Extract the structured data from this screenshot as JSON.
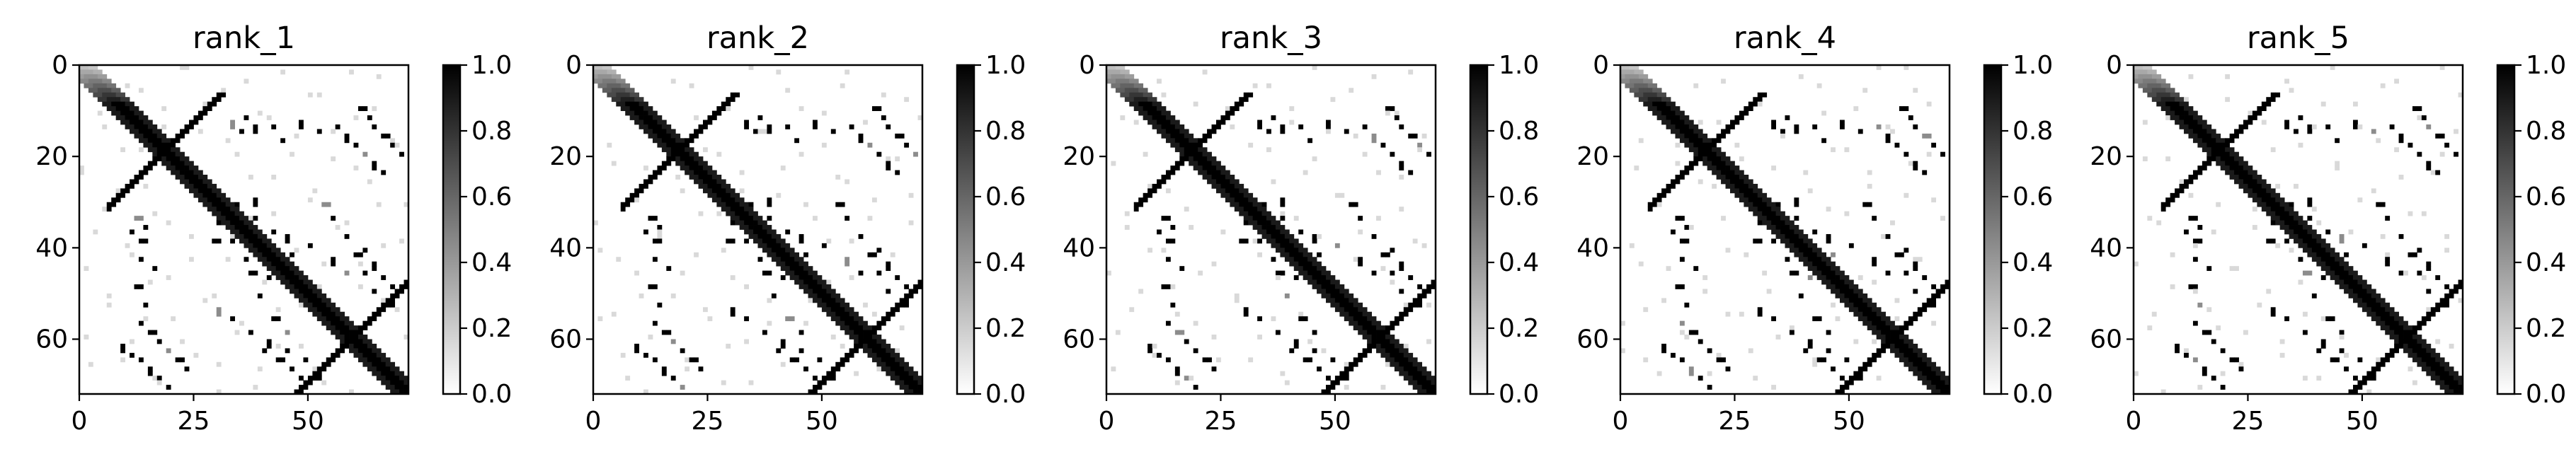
{
  "chart_data": [
    {
      "type": "heatmap",
      "title": "rank_1",
      "matrix_size": 72,
      "xticks": [
        0,
        25,
        50
      ],
      "yticks": [
        0,
        20,
        40,
        60
      ],
      "xlim": [
        0,
        72
      ],
      "ylim": [
        72,
        0
      ],
      "colorbar": {
        "min": 0.0,
        "max": 1.0,
        "ticks": [
          "0.0",
          "0.2",
          "0.4",
          "0.6",
          "0.8",
          "1.0"
        ],
        "colormap": "gray_r"
      },
      "contacts": {
        "diagonal_band": {
          "from": 0,
          "to": 71,
          "width": 3,
          "value": 1.0
        },
        "anti_diagonal_segments": [
          {
            "i_start": 31,
            "j_start": 6,
            "length": 13,
            "value": 1.0,
            "note": "strand pairing 6-18 with 19-31"
          },
          {
            "i_start": 72,
            "j_start": 47,
            "length": 25,
            "value": 1.0,
            "note": "strand pairing 47-59 with 59-71"
          }
        ],
        "sparse_points": [
          [
            12,
            33
          ],
          [
            14,
            35
          ],
          [
            11,
            36
          ],
          [
            13,
            38
          ],
          [
            13,
            42
          ],
          [
            16,
            44
          ],
          [
            12,
            48
          ],
          [
            14,
            52
          ],
          [
            13,
            56
          ],
          [
            15,
            58
          ],
          [
            17,
            60
          ],
          [
            19,
            62
          ],
          [
            21,
            64
          ],
          [
            23,
            66
          ],
          [
            30,
            34
          ],
          [
            29,
            38
          ],
          [
            33,
            38
          ],
          [
            36,
            42
          ],
          [
            37,
            45
          ],
          [
            41,
            46
          ],
          [
            39,
            50
          ],
          [
            42,
            55
          ],
          [
            45,
            58
          ],
          [
            40,
            62
          ],
          [
            43,
            64
          ],
          [
            46,
            66
          ],
          [
            48,
            68
          ],
          [
            61,
            9
          ],
          [
            63,
            11
          ],
          [
            64,
            13
          ],
          [
            66,
            15
          ],
          [
            68,
            17
          ],
          [
            70,
            19
          ],
          [
            53,
            30
          ],
          [
            55,
            33
          ],
          [
            58,
            37
          ],
          [
            60,
            41
          ],
          [
            62,
            45
          ],
          [
            64,
            49
          ],
          [
            67,
            52
          ]
        ],
        "faint_points_value": 0.15
      }
    },
    {
      "type": "heatmap",
      "title": "rank_2",
      "same_as": 0,
      "xticks": [
        0,
        25,
        50
      ],
      "yticks": [
        0,
        20,
        40,
        60
      ],
      "colorbar": {
        "min": 0.0,
        "max": 1.0,
        "ticks": [
          "0.0",
          "0.2",
          "0.4",
          "0.6",
          "0.8",
          "1.0"
        ]
      }
    },
    {
      "type": "heatmap",
      "title": "rank_3",
      "same_as": 0,
      "xticks": [
        0,
        25,
        50
      ],
      "yticks": [
        0,
        20,
        40,
        60
      ],
      "colorbar": {
        "min": 0.0,
        "max": 1.0,
        "ticks": [
          "0.0",
          "0.2",
          "0.4",
          "0.6",
          "0.8",
          "1.0"
        ]
      }
    },
    {
      "type": "heatmap",
      "title": "rank_4",
      "same_as": 0,
      "xticks": [
        0,
        25,
        50
      ],
      "yticks": [
        0,
        20,
        40,
        60
      ],
      "colorbar": {
        "min": 0.0,
        "max": 1.0,
        "ticks": [
          "0.0",
          "0.2",
          "0.4",
          "0.6",
          "0.8",
          "1.0"
        ]
      }
    },
    {
      "type": "heatmap",
      "title": "rank_5",
      "same_as": 0,
      "xticks": [
        0,
        25,
        50
      ],
      "yticks": [
        0,
        20,
        40,
        60
      ],
      "colorbar": {
        "min": 0.0,
        "max": 1.0,
        "ticks": [
          "0.0",
          "0.2",
          "0.4",
          "0.6",
          "0.8",
          "1.0"
        ]
      }
    }
  ],
  "colors": {
    "high": "#000000",
    "low": "#ffffff",
    "frame": "#000000"
  }
}
